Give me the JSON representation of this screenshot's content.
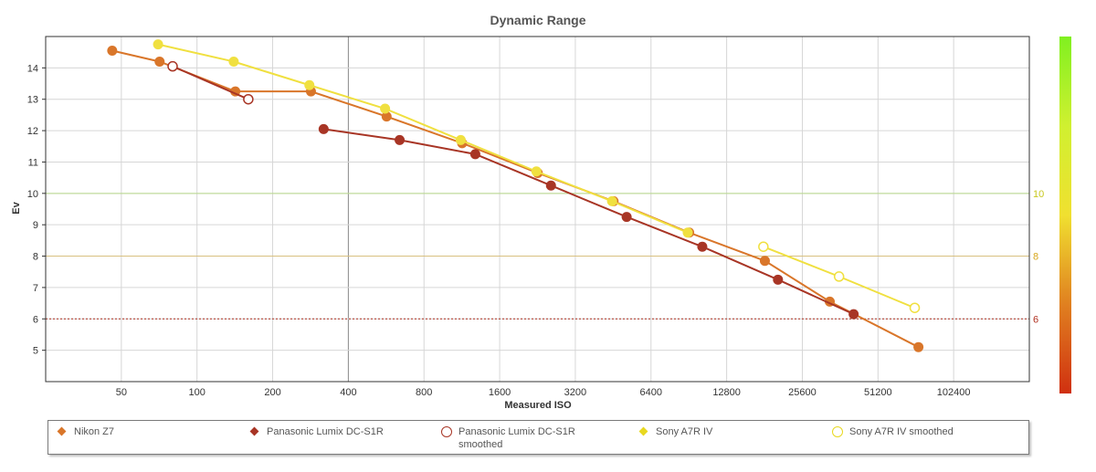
{
  "chart_data": {
    "type": "line",
    "title": "Dynamic Range",
    "xlabel": "Measured ISO",
    "ylabel": "Ev",
    "x_scale": "log2",
    "x_ticks": [
      50,
      100,
      200,
      400,
      800,
      1600,
      3200,
      6400,
      12800,
      25600,
      51200,
      102400
    ],
    "xlim": [
      25,
      204800
    ],
    "y_ticks": [
      5,
      6,
      7,
      8,
      9,
      10,
      11,
      12,
      13,
      14
    ],
    "ylim": [
      4,
      15
    ],
    "grid": true,
    "reference_lines": [
      {
        "value": 10,
        "label": "10",
        "color": "#b8d98a",
        "label_color": "#c8c820",
        "style": "solid"
      },
      {
        "value": 8,
        "label": "8",
        "color": "#d8c080",
        "label_color": "#d8a820",
        "style": "solid"
      },
      {
        "value": 6,
        "label": "6",
        "color": "#b03020",
        "label_color": "#b03020",
        "style": "dotted"
      }
    ],
    "colorbar": {
      "colors": [
        "#d03010",
        "#e08020",
        "#f0e030",
        "#d0f030",
        "#80f020"
      ],
      "position": "right"
    },
    "series": [
      {
        "name": "Nikon Z7",
        "color": "#d9762a",
        "marker": "filled",
        "legend_marker": "diamond",
        "points": [
          [
            46,
            14.55
          ],
          [
            71,
            14.2
          ],
          [
            142,
            13.25
          ],
          [
            284,
            13.25
          ],
          [
            568,
            12.45
          ],
          [
            1135,
            11.6
          ],
          [
            2268,
            10.65
          ],
          [
            4541,
            9.75
          ],
          [
            9082,
            8.75
          ],
          [
            18164,
            7.85
          ],
          [
            32916,
            6.55
          ],
          [
            74168,
            5.1
          ]
        ]
      },
      {
        "name": "Panasonic Lumix DC-S1R",
        "color": "#a83525",
        "marker": "filled",
        "legend_marker": "diamond",
        "points": [
          [
            319,
            12.05
          ],
          [
            640,
            11.7
          ],
          [
            1280,
            11.25
          ],
          [
            2560,
            10.25
          ],
          [
            5120,
            9.25
          ],
          [
            10240,
            8.3
          ],
          [
            20480,
            7.25
          ],
          [
            40960,
            6.15
          ]
        ]
      },
      {
        "name": "Panasonic Lumix DC-S1R smoothed",
        "color": "#a83525",
        "marker": "hollow",
        "legend_marker": "circle",
        "points": [
          [
            80,
            14.05
          ],
          [
            160,
            13.0
          ]
        ]
      },
      {
        "name": "Sony A7R IV",
        "color": "#f0e040",
        "marker": "filled",
        "legend_marker": "diamond",
        "points": [
          [
            70,
            14.75
          ],
          [
            140,
            14.2
          ],
          [
            280,
            13.45
          ],
          [
            560,
            12.7
          ],
          [
            1120,
            11.7
          ],
          [
            2240,
            10.7
          ],
          [
            4480,
            9.75
          ],
          [
            8960,
            8.75
          ]
        ]
      },
      {
        "name": "Sony A7R IV smoothed",
        "color": "#f0e040",
        "marker": "hollow",
        "legend_marker": "circle",
        "points": [
          [
            17920,
            8.3
          ],
          [
            35840,
            7.35
          ],
          [
            71680,
            6.35
          ]
        ]
      }
    ]
  }
}
